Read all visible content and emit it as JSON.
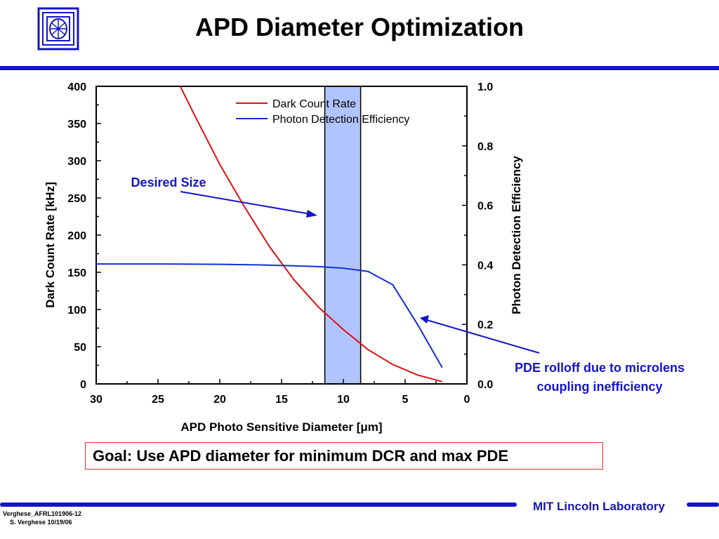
{
  "slide": {
    "title": "APD Diameter Optimization",
    "goal": "Goal: Use APD diameter for minimum DCR and max PDE",
    "footer_org": "MIT Lincoln Laboratory",
    "footer_doc": "Verghese_AFRL101906-12",
    "footer_author": "S. Verghese 10/19/06",
    "logo_icon": "mit-ll-logo-icon",
    "accent_color": "#1414c8"
  },
  "chart_data": {
    "type": "line",
    "xlabel_prefix": "APD Photo Sensitive Diameter ",
    "xlabel_unit": "[μm]",
    "ylabel_left": "Dark Count Rate [kHz]",
    "ylabel_right": "Photon Detection Efficiency",
    "xlim": [
      30,
      0
    ],
    "ylim_left": [
      0,
      400
    ],
    "ylim_right": [
      0.0,
      1.0
    ],
    "x_ticks": [
      "30",
      "25",
      "20",
      "15",
      "10",
      "5",
      "0"
    ],
    "x_tick_values": [
      30,
      25,
      20,
      15,
      10,
      5,
      0
    ],
    "y_left_ticks": [
      "0",
      "50",
      "100",
      "150",
      "200",
      "250",
      "300",
      "350",
      "400"
    ],
    "y_left_tick_values": [
      0,
      50,
      100,
      150,
      200,
      250,
      300,
      350,
      400
    ],
    "y_right_ticks": [
      "0.0",
      "0.2",
      "0.4",
      "0.6",
      "0.8",
      "1.0"
    ],
    "y_right_tick_values": [
      0.0,
      0.2,
      0.4,
      0.6,
      0.8,
      1.0
    ],
    "highlight_band": {
      "x_from": 11.5,
      "x_to": 8.6,
      "color": "#b0c4ff"
    },
    "series": [
      {
        "name": "Dark Count Rate",
        "axis": "left",
        "color": "#e01010",
        "x": [
          23.2,
          22,
          20,
          18,
          16,
          14,
          12,
          10,
          8,
          6,
          4,
          2
        ],
        "y": [
          400,
          360,
          295,
          238,
          185,
          140,
          103,
          73,
          46,
          26,
          12,
          3
        ]
      },
      {
        "name": "Photon Detection Efficiency",
        "axis": "right",
        "color": "#1030d0",
        "x": [
          30,
          25,
          20,
          17,
          14,
          12,
          10,
          8,
          6,
          4,
          2
        ],
        "y": [
          0.403,
          0.403,
          0.402,
          0.4,
          0.397,
          0.394,
          0.389,
          0.378,
          0.333,
          0.2,
          0.055
        ]
      }
    ],
    "annotations": [
      {
        "text": "Desired Size",
        "color": "#1414c8"
      },
      {
        "text": "PDE rolloff due to microlens",
        "color": "#1414c8"
      },
      {
        "text": "coupling inefficiency",
        "color": "#1414c8"
      }
    ],
    "legend_position": "top-center"
  }
}
